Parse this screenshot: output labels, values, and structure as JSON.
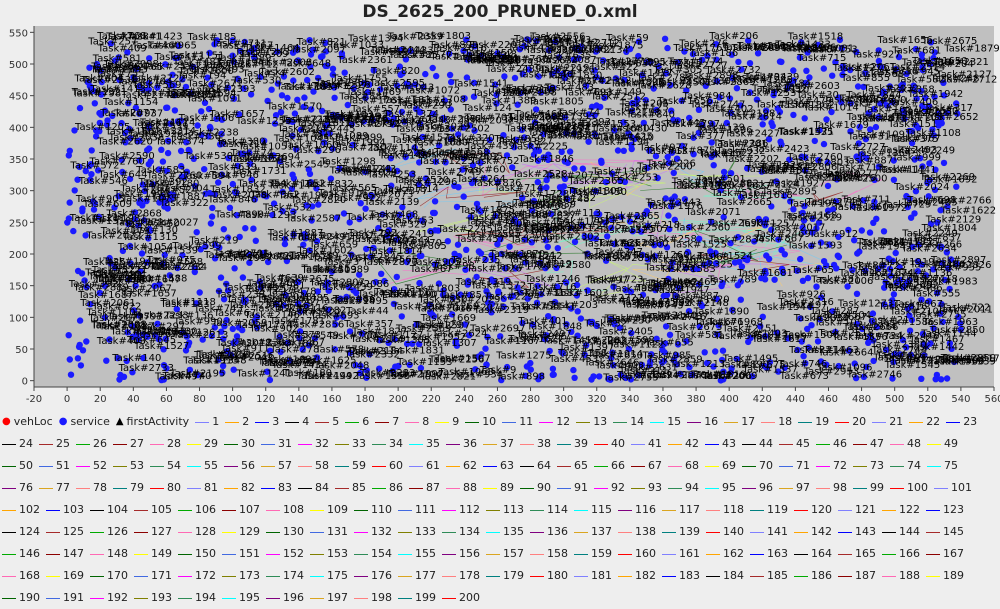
{
  "chart_data": {
    "type": "scatter",
    "title": "DS_2625_200_PRUNED_0.xml",
    "xlabel": "",
    "ylabel": "",
    "xlim": [
      -20,
      560
    ],
    "ylim": [
      -10,
      560
    ],
    "x_ticks": [
      -20,
      0,
      20,
      40,
      60,
      80,
      100,
      120,
      140,
      160,
      180,
      200,
      220,
      240,
      260,
      280,
      300,
      320,
      340,
      360,
      380,
      400,
      420,
      440,
      460,
      480,
      500,
      520,
      540,
      560
    ],
    "y_ticks": [
      0,
      50,
      100,
      150,
      200,
      250,
      300,
      350,
      400,
      450,
      500,
      550
    ],
    "grid": false,
    "plot_background": "#c0c0c0",
    "marker_color": "#1a1aff",
    "task_labels": [
      {
        "text": "Task#2317",
        "x": 530,
        "y": 30
      },
      {
        "text": "Task#2076",
        "x": 487,
        "y": 32
      },
      {
        "text": "Task#2953",
        "x": 445,
        "y": 10
      },
      {
        "text": "Task#1033",
        "x": 158,
        "y": 525
      },
      {
        "text": "Task#753",
        "x": 448,
        "y": 518
      },
      {
        "text": "Task#927",
        "x": 474,
        "y": 510
      },
      {
        "text": "Task#1879",
        "x": 530,
        "y": 520
      },
      {
        "text": "Task#2077",
        "x": 20,
        "y": 418
      },
      {
        "text": "Task#2061",
        "x": 8,
        "y": 118
      },
      {
        "text": "Task#403",
        "x": 18,
        "y": 58
      },
      {
        "text": "Task#2018",
        "x": 90,
        "y": 55
      },
      {
        "text": "Task#5221",
        "x": 15,
        "y": 170
      },
      {
        "text": "Task#2826",
        "x": 525,
        "y": 178
      },
      {
        "text": "Task#2755",
        "x": 510,
        "y": 100
      },
      {
        "text": "Task#1532",
        "x": 505,
        "y": 420
      },
      {
        "text": "Task#2097",
        "x": 135,
        "y": 518
      },
      {
        "text": "Task#2098",
        "x": 22,
        "y": 495
      },
      {
        "text": "Task#1589",
        "x": 90,
        "y": 505
      }
    ],
    "legend": {
      "placement": "bottom",
      "markers": [
        {
          "label": "vehLoc",
          "symbol": "●",
          "color": "#ff0000"
        },
        {
          "label": "service",
          "symbol": "●",
          "color": "#1a1aff"
        },
        {
          "label": "firstActivity",
          "symbol": "▲",
          "color": "#000000"
        }
      ],
      "route_count": 200
    }
  }
}
